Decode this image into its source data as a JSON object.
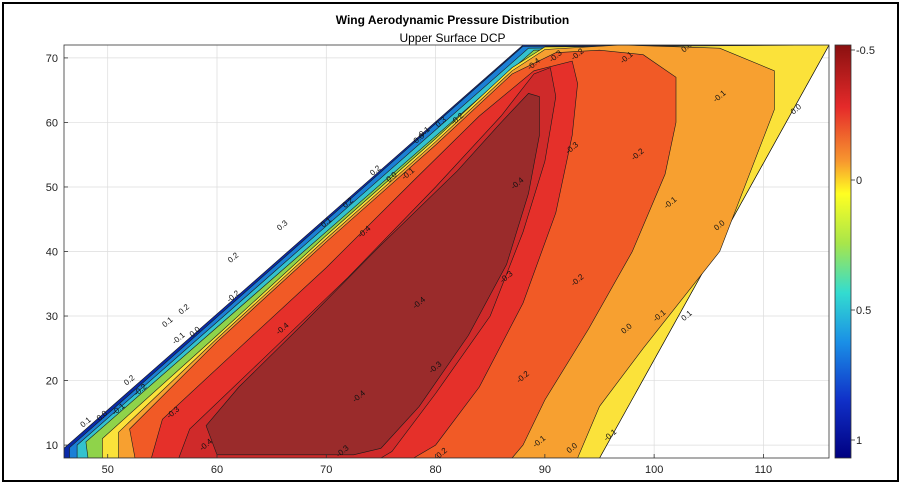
{
  "chart_data": {
    "type": "contour",
    "title": "Wing Aerodynamic Pressure Distribution",
    "subtitle": "Upper Surface DCP",
    "xlabel": "",
    "ylabel": "",
    "xlim": [
      46,
      116
    ],
    "ylim": [
      8,
      72
    ],
    "xticks": [
      50,
      60,
      70,
      80,
      90,
      100,
      110
    ],
    "yticks": [
      10,
      20,
      30,
      40,
      50,
      60,
      70
    ],
    "grid": true,
    "colorbar": {
      "position": "right",
      "direction": "reversed",
      "range": [
        1.0,
        -0.5
      ],
      "ticks": [
        -0.5,
        0,
        0.5,
        1
      ],
      "tick_labels": [
        "-0.5",
        "0",
        "0.5",
        "1"
      ]
    },
    "levels": [
      {
        "value": 0.4,
        "color": "#0a2aa8"
      },
      {
        "value": 0.3,
        "color": "#1b7fd6"
      },
      {
        "value": 0.2,
        "color": "#33c2cf"
      },
      {
        "value": 0.1,
        "color": "#8fd34a"
      },
      {
        "value": 0.0,
        "color": "#fbe23a"
      },
      {
        "value": -0.1,
        "color": "#f7a030"
      },
      {
        "value": -0.2,
        "color": "#f15a26"
      },
      {
        "value": -0.3,
        "color": "#e5302a"
      },
      {
        "value": -0.4,
        "color": "#cf2a2a"
      },
      {
        "value": -0.5,
        "color": "#9a2b2b"
      }
    ],
    "contour_labels": [
      {
        "text": "0.0",
        "x": 103,
        "y": 71.6
      },
      {
        "text": "-0.1",
        "x": 97.5,
        "y": 70
      },
      {
        "text": "-0.2",
        "x": 93,
        "y": 70.5
      },
      {
        "text": "-0.3",
        "x": 91,
        "y": 70.2
      },
      {
        "text": "-0.4",
        "x": 89,
        "y": 69
      },
      {
        "text": "-0.1",
        "x": 106,
        "y": 64
      },
      {
        "text": "0.0",
        "x": 113,
        "y": 62
      },
      {
        "text": "-0.3",
        "x": 92.5,
        "y": 56
      },
      {
        "text": "-0.2",
        "x": 98.5,
        "y": 55
      },
      {
        "text": "-0.4",
        "x": 87.5,
        "y": 50.5
      },
      {
        "text": "-0.1",
        "x": 101.5,
        "y": 47.5
      },
      {
        "text": "0.0",
        "x": 106,
        "y": 44
      },
      {
        "text": "-0.4",
        "x": 73.5,
        "y": 43
      },
      {
        "text": "-0.3",
        "x": 86.5,
        "y": 36
      },
      {
        "text": "-0.2",
        "x": 93,
        "y": 35.5
      },
      {
        "text": "-0.4",
        "x": 78.5,
        "y": 32
      },
      {
        "text": "-0.1",
        "x": 100.5,
        "y": 30
      },
      {
        "text": "0.1",
        "x": 103,
        "y": 30
      },
      {
        "text": "0.0",
        "x": 97.5,
        "y": 28
      },
      {
        "text": "-0.4",
        "x": 66,
        "y": 28
      },
      {
        "text": "-0.3",
        "x": 80,
        "y": 22
      },
      {
        "text": "-0.2",
        "x": 88,
        "y": 20.5
      },
      {
        "text": "-0.4",
        "x": 73,
        "y": 17.5
      },
      {
        "text": "-0.3",
        "x": 56,
        "y": 15
      },
      {
        "text": "-0.4",
        "x": 59,
        "y": 10
      },
      {
        "text": "-0.3",
        "x": 71.5,
        "y": 9
      },
      {
        "text": "-0.2",
        "x": 80.5,
        "y": 8.6
      },
      {
        "text": "-0.1",
        "x": 89.5,
        "y": 10.5
      },
      {
        "text": "0.0",
        "x": 92.5,
        "y": 9.5
      },
      {
        "text": "-0.1",
        "x": 96,
        "y": 11.5
      },
      {
        "text": "-0.2",
        "x": 53,
        "y": 18.5
      },
      {
        "text": "-0.1",
        "x": 51,
        "y": 15.5
      },
      {
        "text": "0.0",
        "x": 49.5,
        "y": 14.5
      },
      {
        "text": "0.1",
        "x": 48,
        "y": 13.5
      },
      {
        "text": "0.2",
        "x": 52,
        "y": 20
      },
      {
        "text": "-0.1",
        "x": 56.5,
        "y": 26.5
      },
      {
        "text": "0.0",
        "x": 58,
        "y": 27.5
      },
      {
        "text": "0.1",
        "x": 55.5,
        "y": 29
      },
      {
        "text": "0.2",
        "x": 57,
        "y": 31
      },
      {
        "text": "-0.2",
        "x": 61.5,
        "y": 33
      },
      {
        "text": "0.2",
        "x": 61.5,
        "y": 39
      },
      {
        "text": "0.3",
        "x": 66,
        "y": 44
      },
      {
        "text": "0.1",
        "x": 70,
        "y": 44.5
      },
      {
        "text": "0.2",
        "x": 72,
        "y": 47.5
      },
      {
        "text": "0.0",
        "x": 76,
        "y": 51.5
      },
      {
        "text": "-0.1",
        "x": 77.5,
        "y": 52
      },
      {
        "text": "0.2",
        "x": 74.5,
        "y": 52.5
      },
      {
        "text": "0.0",
        "x": 78.5,
        "y": 57.5
      },
      {
        "text": "0.1",
        "x": 79,
        "y": 58.5
      },
      {
        "text": "0.3",
        "x": 80.5,
        "y": 60
      },
      {
        "text": "-0.2",
        "x": 82,
        "y": 60.5
      }
    ]
  }
}
